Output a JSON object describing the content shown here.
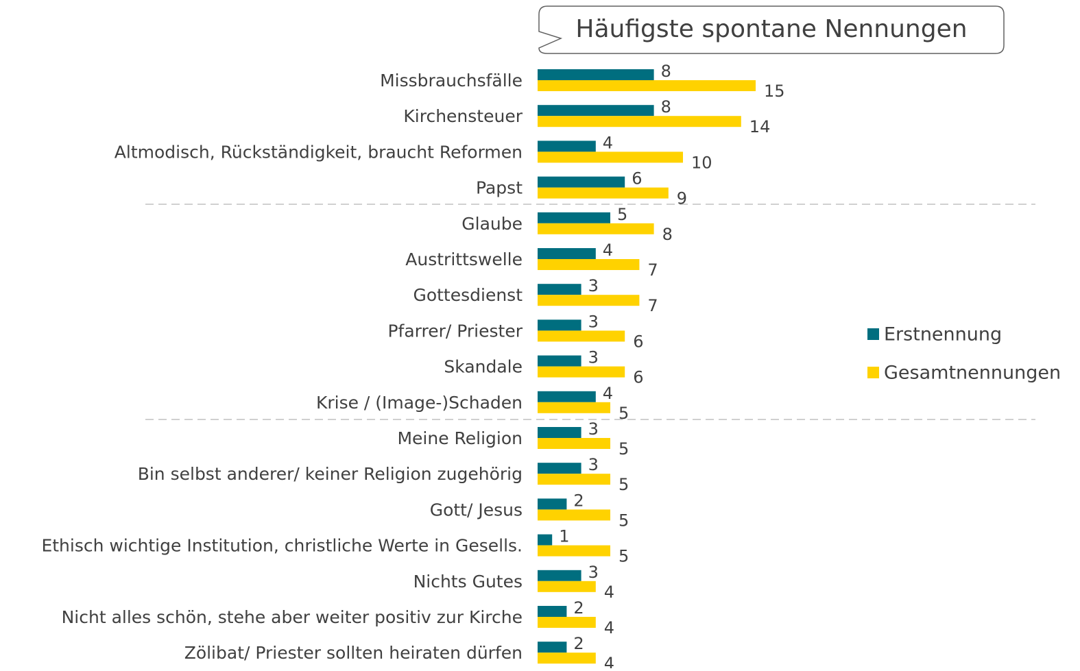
{
  "chart_data": {
    "type": "bar",
    "orientation": "horizontal",
    "title": "Häufigste spontane Nennungen",
    "categories": [
      "Missbrauchsfälle",
      "Kirchensteuer",
      "Altmodisch, Rückständigkeit, braucht Reformen",
      "Papst",
      "Glaube",
      "Austrittswelle",
      "Gottesdienst",
      "Pfarrer/ Priester",
      "Skandale",
      "Krise / (Image-)Schaden",
      "Meine Religion",
      "Bin selbst anderer/ keiner Religion zugehörig",
      "Gott/ Jesus",
      "Ethisch wichtige Institution, christliche Werte in Gesells.",
      "Nichts Gutes",
      "Nicht alles schön, stehe aber weiter positiv zur Kirche",
      "Zölibat/ Priester sollten heiraten dürfen"
    ],
    "series": [
      {
        "name": "Erstnennung",
        "color": "#006e7f",
        "values": [
          8,
          8,
          4,
          6,
          5,
          4,
          3,
          3,
          3,
          4,
          3,
          3,
          2,
          1,
          3,
          2,
          2
        ]
      },
      {
        "name": "Gesamtnennungen",
        "color": "#ffd200",
        "values": [
          15,
          14,
          10,
          9,
          8,
          7,
          7,
          6,
          6,
          5,
          5,
          5,
          5,
          5,
          4,
          4,
          4
        ]
      }
    ],
    "legend": "right"
  }
}
